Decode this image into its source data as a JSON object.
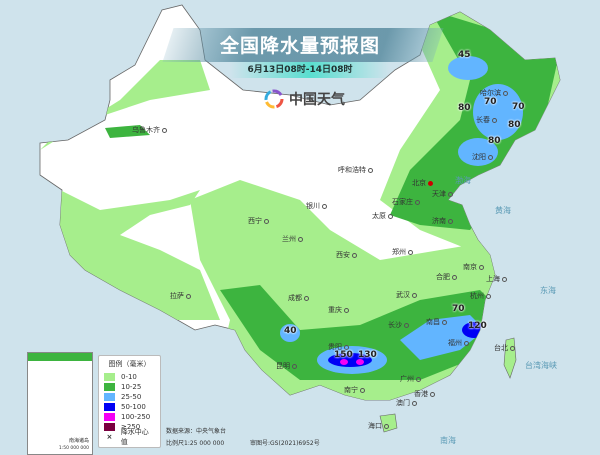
{
  "header": {
    "title": "全国降水量预报图",
    "subtitle": "6月13日08时-14日08时",
    "logo_text": "中国天气"
  },
  "legend": {
    "title": "图例（毫米）",
    "items": [
      {
        "label": "0-10",
        "color": "#a6ee8c"
      },
      {
        "label": "10-25",
        "color": "#3db43f"
      },
      {
        "label": "25-50",
        "color": "#62b5ff"
      },
      {
        "label": "50-100",
        "color": "#0000f5"
      },
      {
        "label": "100-250",
        "color": "#f500f5"
      },
      {
        "label": "≥250",
        "color": "#7a0040"
      }
    ],
    "center_label": "降水中心值",
    "center_icon": "x-mark-icon"
  },
  "inset": {
    "label": "南海诸岛",
    "scale": "1:50 000 000"
  },
  "footer": {
    "source": "数据来源：中央气象台",
    "scale": "比例尺1:25 000 000",
    "approval": "审图号:GS(2021)6952号"
  },
  "cities": [
    "乌鲁木齐",
    "哈尔滨",
    "长春",
    "沈阳",
    "呼和浩特",
    "北京",
    "天津",
    "石家庄",
    "太原",
    "济南",
    "银川",
    "西宁",
    "兰州",
    "西安",
    "郑州",
    "合肥",
    "南京",
    "上海",
    "武汉",
    "杭州",
    "成都",
    "重庆",
    "拉萨",
    "长沙",
    "南昌",
    "福州",
    "贵阳",
    "昆明",
    "南宁",
    "广州",
    "香港",
    "澳门",
    "海口",
    "台北"
  ],
  "rain_centers": [
    "45",
    "70",
    "70",
    "80",
    "80",
    "80",
    "40",
    "150",
    "130",
    "70",
    "120"
  ],
  "seas": [
    "渤海",
    "黄海",
    "东海",
    "南海",
    "台湾海峡"
  ]
}
